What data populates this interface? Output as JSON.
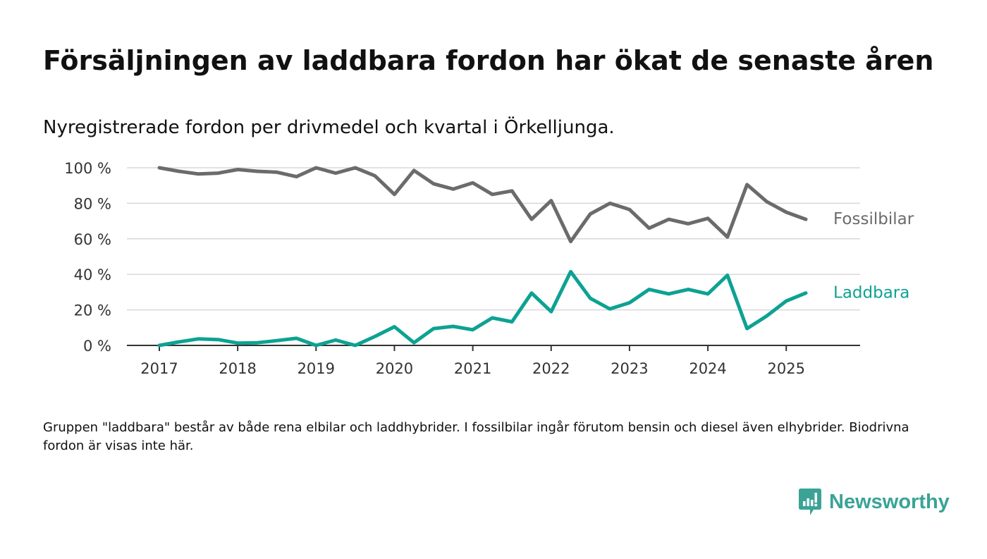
{
  "title": "Försäljningen av laddbara fordon har ökat de senaste åren",
  "subtitle": "Nyregistrerade fordon per drivmedel och kvartal i Örkelljunga.",
  "note": "Gruppen \"laddbara\" består av både rena elbilar och laddhybrider. I fossilbilar ingår förutom bensin och diesel även elhybrider. Biodrivna fordon är visas inte här.",
  "brand": {
    "name": "Newsworthy",
    "icon": "newsworthy-logo-icon",
    "color": "#3aa396"
  },
  "chart_data": {
    "type": "line",
    "title": "Försäljningen av laddbara fordon har ökat de senaste åren",
    "subtitle": "Nyregistrerade fordon per drivmedel och kvartal i Örkelljunga.",
    "xlabel": "",
    "ylabel": "",
    "x": [
      "2017-01",
      "2017-04",
      "2017-07",
      "2017-10",
      "2018-01",
      "2018-04",
      "2018-07",
      "2018-10",
      "2019-01",
      "2019-04",
      "2019-07",
      "2019-10",
      "2020-01",
      "2020-04",
      "2020-07",
      "2020-10",
      "2021-01",
      "2021-04",
      "2021-07",
      "2021-10",
      "2022-01",
      "2022-04",
      "2022-07",
      "2022-10",
      "2023-01",
      "2023-04",
      "2023-07",
      "2023-10",
      "2024-01",
      "2024-04",
      "2024-07",
      "2024-10",
      "2025-01",
      "2025-04"
    ],
    "x_ticks": [
      "2017",
      "2018",
      "2019",
      "2020",
      "2021",
      "2022",
      "2023",
      "2024",
      "2025"
    ],
    "y_ticks": [
      "0 %",
      "20 %",
      "40 %",
      "60 %",
      "80 %",
      "100 %"
    ],
    "ylim": [
      0,
      100
    ],
    "grid": true,
    "legend": "direct labels at line ends",
    "series": [
      {
        "name": "Fossilbilar",
        "color": "#6b6b6e",
        "values": [
          100,
          98,
          96.5,
          97,
          99,
          98,
          97.5,
          95,
          100,
          97,
          100,
          95.5,
          85,
          98.5,
          91,
          88,
          91.5,
          85,
          87,
          71,
          81.5,
          58.5,
          74,
          80,
          76.5,
          66,
          71,
          68.5,
          71.5,
          61,
          90.5,
          81,
          75,
          71
        ]
      },
      {
        "name": "Laddbara",
        "color": "#0da293",
        "values": [
          0,
          2,
          3.7,
          3.3,
          1.3,
          1.5,
          2.7,
          4,
          0,
          3,
          0,
          5,
          10.5,
          1.5,
          9.5,
          10.7,
          8.8,
          15.5,
          13.3,
          29.5,
          19,
          41.5,
          26.5,
          20.5,
          24,
          31.5,
          29,
          31.5,
          29,
          39.5,
          9.5,
          16.5,
          25,
          29.5
        ]
      }
    ]
  }
}
